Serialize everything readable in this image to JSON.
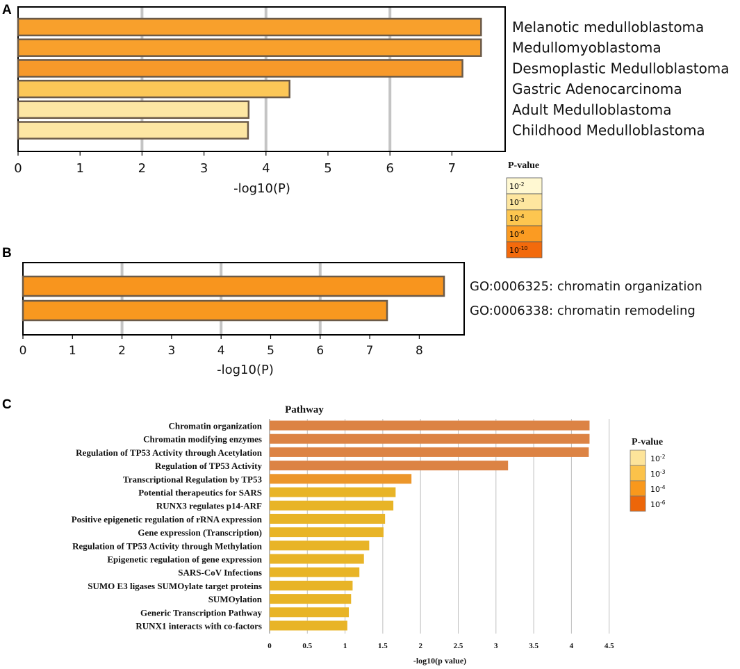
{
  "figure": {
    "panels": [
      "A",
      "B",
      "C"
    ]
  },
  "chart_data": [
    {
      "type": "bar",
      "orientation": "horizontal",
      "panel": "A",
      "categories": [
        "Melanotic medulloblastoma",
        "Medullomyoblastoma",
        "Desmoplastic Medulloblastoma",
        "Gastric Adenocarcinoma",
        "Adult Medulloblastoma",
        "Childhood Medulloblastoma"
      ],
      "values": [
        7.47,
        7.47,
        7.17,
        4.38,
        3.72,
        3.71
      ],
      "colors": [
        "#f8a02c",
        "#f8a02c",
        "#f7992a",
        "#fcc757",
        "#fde6a3",
        "#fde6a3"
      ],
      "xlabel": "-log10(P)",
      "xlim": [
        0,
        7.8
      ],
      "xticks": [
        0,
        1,
        2,
        3,
        4,
        5,
        6,
        7
      ],
      "gridlines": [
        2,
        4,
        6
      ],
      "legend": {
        "title": "P-value",
        "placement": "right",
        "items": [
          {
            "base": "10",
            "exp": "-2",
            "color": "#fff8d2"
          },
          {
            "base": "10",
            "exp": "-3",
            "color": "#fee69f"
          },
          {
            "base": "10",
            "exp": "-4",
            "color": "#fdc650"
          },
          {
            "base": "10",
            "exp": "-6",
            "color": "#fb9b22"
          },
          {
            "base": "10",
            "exp": "-10",
            "color": "#f36a0c"
          }
        ]
      }
    },
    {
      "type": "bar",
      "orientation": "horizontal",
      "panel": "B",
      "categories": [
        "GO:0006325: chromatin organization",
        "GO:0006338: chromatin remodeling"
      ],
      "values": [
        8.5,
        7.35
      ],
      "colors": [
        "#f8951e",
        "#f8981f"
      ],
      "xlabel": "-log10(P)",
      "xlim": [
        0,
        8.95
      ],
      "xticks": [
        0,
        1,
        2,
        3,
        4,
        5,
        6,
        7,
        8
      ],
      "gridlines": [
        2,
        4,
        6
      ]
    },
    {
      "type": "bar",
      "orientation": "horizontal",
      "panel": "C",
      "title": "Pathway",
      "categories": [
        "Chromatin organization",
        "Chromatin modifying enzymes",
        "Regulation of TP53 Activity through Acetylation",
        "Regulation of TP53 Activity",
        "Transcriptional Regulation by TP53",
        "Potential therapeutics for SARS",
        "RUNX3 regulates p14-ARF",
        "Positive epigenetic regulation of rRNA expression",
        "Gene expression (Transcription)",
        "Regulation of TP53 Activity through Methylation",
        "Epigenetic regulation of gene expression",
        "SARS-CoV Infections",
        "SUMO E3 ligases SUMOylate target proteins",
        "SUMOylation",
        "Generic Transcription Pathway",
        "RUNX1 interacts with co-factors"
      ],
      "values": [
        4.24,
        4.24,
        4.23,
        3.16,
        1.88,
        1.67,
        1.64,
        1.53,
        1.51,
        1.32,
        1.25,
        1.19,
        1.1,
        1.08,
        1.05,
        1.03
      ],
      "colors": [
        "#dc8344",
        "#dc8344",
        "#dc8344",
        "#dc8344",
        "#ec962a",
        "#e8b427",
        "#e8b427",
        "#e8b427",
        "#e8b427",
        "#e8b427",
        "#e8b427",
        "#e8b427",
        "#e8b427",
        "#e8b427",
        "#e8b427",
        "#e8b427"
      ],
      "xlabel": "-log10(p value)",
      "xlim": [
        0,
        4.5
      ],
      "xticks": [
        "0",
        "0.5",
        "1",
        "1.5",
        "2",
        "2.5",
        "3",
        "3.5",
        "4",
        "4.5"
      ],
      "legend": {
        "title": "P-value",
        "placement": "right",
        "items": [
          {
            "base": "10",
            "exp": "-2",
            "color": "#fde49a"
          },
          {
            "base": "10",
            "exp": "-3",
            "color": "#fbc24a"
          },
          {
            "base": "10",
            "exp": "-4",
            "color": "#f9981c"
          },
          {
            "base": "10",
            "exp": "-6",
            "color": "#ed6609"
          }
        ]
      }
    }
  ]
}
